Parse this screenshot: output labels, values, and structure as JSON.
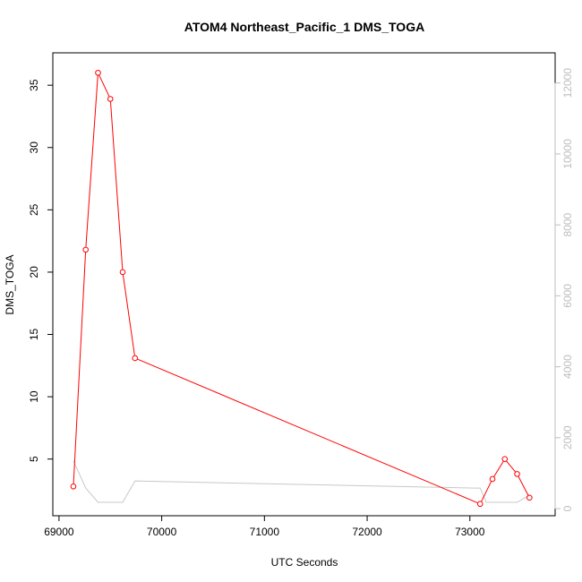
{
  "chart_data": {
    "type": "line",
    "title": "ATOM4 Northeast_Pacific_1 DMS_TOGA",
    "xlabel": "UTC Seconds",
    "ylabel": "DMS_TOGA",
    "xlim": [
      68940,
      73830
    ],
    "ylim": [
      0.45,
      37.6
    ],
    "y2lim": [
      -200,
      12850
    ],
    "x_ticks": [
      69000,
      70000,
      71000,
      72000,
      73000
    ],
    "x_tick_labels": [
      "69000",
      "70000",
      "71000",
      "72000",
      "73000"
    ],
    "y_ticks": [
      5,
      10,
      15,
      20,
      25,
      30,
      35
    ],
    "y_tick_labels": [
      "5",
      "10",
      "15",
      "20",
      "25",
      "30",
      "35"
    ],
    "y2_ticks": [
      0,
      2000,
      4000,
      6000,
      8000,
      10000,
      12000
    ],
    "y2_tick_labels": [
      "0",
      "2000",
      "4000",
      "6000",
      "8000",
      "10000",
      "12000"
    ],
    "grid": false,
    "colors": {
      "primary": "#ff0000",
      "secondary": "#c8c8c8",
      "axis": "#000000",
      "axis2": "#bdbdbd"
    },
    "series": [
      {
        "axis": "left",
        "style": "line+open-circle",
        "x": [
          69140,
          69260,
          69380,
          69500,
          69620,
          69740,
          73100,
          73220,
          73340,
          73460,
          73580
        ],
        "y": [
          2.8,
          21.8,
          36.0,
          33.9,
          20.0,
          13.1,
          1.4,
          3.4,
          5.0,
          3.8,
          1.9
        ]
      },
      {
        "axis": "right",
        "style": "line",
        "x": [
          69140,
          69260,
          69380,
          69500,
          69620,
          69740,
          73050,
          73100,
          73160,
          73460,
          73580
        ],
        "y": [
          1350,
          580,
          180,
          180,
          180,
          780,
          580,
          580,
          180,
          180,
          380
        ]
      }
    ]
  }
}
